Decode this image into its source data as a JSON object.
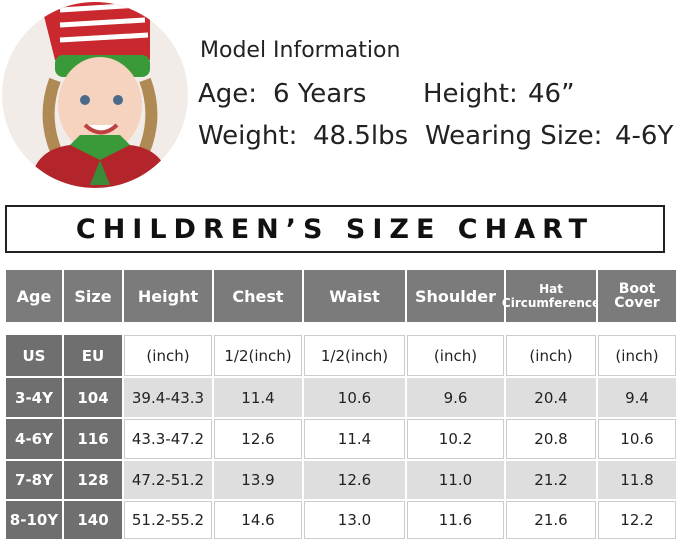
{
  "model_info": {
    "title": "Model Information",
    "age": {
      "label": "Age:",
      "value": "6 Years"
    },
    "height": {
      "label": "Height:",
      "value": "46”"
    },
    "weight": {
      "label": "Weight:",
      "value": "48.5lbs"
    },
    "size": {
      "label": "Wearing Size:",
      "value": "4-6Y"
    }
  },
  "chart_title": "CHILDREN’S SIZE CHART",
  "table": {
    "header": [
      "Age",
      "Size",
      "Height",
      "Chest",
      "Waist",
      "Shoulder",
      "Hat Circumference",
      "Boot Cover"
    ],
    "units": [
      "US",
      "EU",
      "(inch)",
      "1/2(inch)",
      "1/2(inch)",
      "(inch)",
      "(inch)",
      "(inch)"
    ],
    "rows": [
      [
        "3-4Y",
        "104",
        "39.4-43.3",
        "11.4",
        "10.6",
        "9.6",
        "20.4",
        "9.4"
      ],
      [
        "4-6Y",
        "116",
        "43.3-47.2",
        "12.6",
        "11.4",
        "10.2",
        "20.8",
        "10.6"
      ],
      [
        "7-8Y",
        "128",
        "47.2-51.2",
        "13.9",
        "12.6",
        "11.0",
        "21.2",
        "11.8"
      ],
      [
        "8-10Y",
        "140",
        "51.2-55.2",
        "14.6",
        "13.0",
        "11.6",
        "21.6",
        "12.2"
      ]
    ]
  }
}
